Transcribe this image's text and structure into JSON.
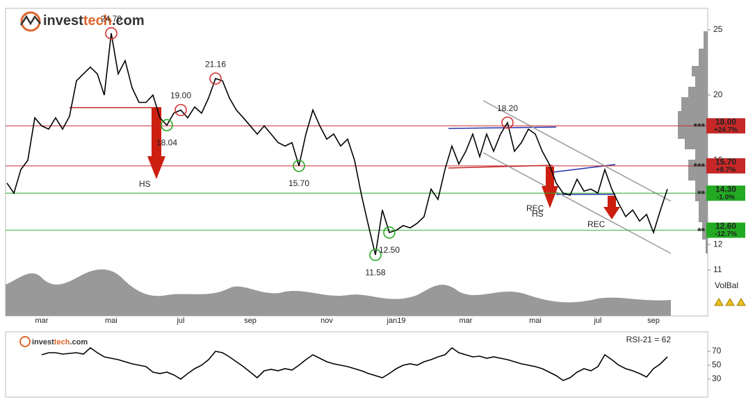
{
  "logo": [
    "invest",
    "tech",
    ".com"
  ],
  "chart_data": [
    {
      "type": "line",
      "log_scale": true,
      "color": "#000000",
      "categories": [
        null,
        null,
        null,
        null,
        null,
        "mar",
        null,
        null,
        null,
        null,
        null,
        null,
        null,
        null,
        null,
        "mai",
        null,
        null,
        null,
        null,
        null,
        null,
        null,
        null,
        null,
        "jul",
        null,
        null,
        null,
        null,
        null,
        null,
        null,
        null,
        null,
        "sep",
        null,
        null,
        null,
        null,
        null,
        null,
        null,
        null,
        null,
        null,
        "nov",
        null,
        null,
        null,
        null,
        null,
        null,
        null,
        null,
        null,
        "jan19",
        null,
        null,
        null,
        null,
        null,
        null,
        null,
        null,
        null,
        "mar",
        null,
        null,
        null,
        null,
        null,
        null,
        null,
        null,
        null,
        "mai",
        null,
        null,
        null,
        null,
        null,
        null,
        null,
        null,
        "jul",
        null,
        null,
        null,
        null,
        null,
        null,
        null,
        "sep",
        null,
        null
      ],
      "values": [
        14.8,
        14.3,
        15.5,
        16,
        18.5,
        18,
        17.8,
        18.5,
        17.8,
        18.6,
        21,
        21.5,
        22,
        21.5,
        20,
        24.7,
        21.5,
        22.5,
        20.5,
        19.5,
        19.5,
        20,
        18.5,
        18.04,
        18.8,
        19,
        18.5,
        19.2,
        18.8,
        19.8,
        21.16,
        21,
        19.8,
        19,
        18.5,
        18,
        17.5,
        18,
        17.5,
        17,
        16.8,
        17,
        15.7,
        17.5,
        19.0,
        18,
        17.2,
        17.5,
        16.8,
        17.2,
        16,
        14.2,
        12.8,
        11.58,
        13.5,
        12.5,
        12.6,
        12.8,
        12.7,
        12.9,
        13.2,
        14.5,
        14,
        15.5,
        16.8,
        15.8,
        16.5,
        17.5,
        16.2,
        17.5,
        16.5,
        17.5,
        18.2,
        16.5,
        17,
        17.8,
        17.5,
        16.5,
        15.8,
        14.8,
        14.3,
        14.2,
        15,
        14.4,
        14.5,
        14.3,
        15.5,
        14.5,
        13.8,
        13.2,
        13.5,
        13,
        13.3,
        12.5,
        13.5,
        14.5
      ],
      "ylim": [
        9.4,
        26.9
      ],
      "yticks": [
        11,
        12,
        16,
        20,
        25
      ],
      "levels": [
        {
          "value": 18.0,
          "label": "18.00",
          "change": "+24.7%",
          "stars": "***",
          "color": "#c62828"
        },
        {
          "value": 15.7,
          "label": "15.70",
          "change": "+8.7%",
          "stars": "***",
          "color": "#c62828"
        },
        {
          "value": 14.3,
          "label": "14.30",
          "change": "-1.0%",
          "stars": "**",
          "color": "#22aa22"
        },
        {
          "value": 12.6,
          "label": "12.60",
          "change": "-12.7%",
          "stars": "**",
          "color": "#22aa22"
        }
      ],
      "annotations": [
        {
          "text": "24.70",
          "value": 24.7,
          "color": "#d32f2f"
        },
        {
          "text": "21.16",
          "value": 21.16,
          "color": "#d32f2f"
        },
        {
          "text": "19.00",
          "value": 19.0,
          "color": "#d32f2f"
        },
        {
          "text": "18.20",
          "value": 18.2,
          "color": "#d32f2f"
        },
        {
          "text": "18.04",
          "value": 18.04,
          "color": "#22aa22"
        },
        {
          "text": "15.70",
          "value": 15.7,
          "color": "#22aa22"
        },
        {
          "text": "11.58",
          "value": 11.58,
          "color": "#22aa22"
        },
        {
          "text": "12.50",
          "value": 12.5,
          "color": "#22aa22"
        }
      ],
      "patterns": [
        "HS",
        "REC",
        "HS",
        "REC"
      ],
      "volume_label": "VolBal"
    },
    {
      "type": "line",
      "title": "RSI-21 = 62",
      "color": "#000000",
      "values": [
        null,
        null,
        null,
        null,
        null,
        65,
        68,
        68,
        66,
        67,
        68,
        66,
        75,
        68,
        62,
        60,
        58,
        55,
        52,
        50,
        48,
        40,
        38,
        40,
        36,
        30,
        38,
        45,
        50,
        58,
        70,
        68,
        62,
        55,
        48,
        40,
        32,
        42,
        44,
        42,
        45,
        43,
        50,
        58,
        65,
        60,
        55,
        52,
        50,
        48,
        45,
        42,
        38,
        35,
        32,
        38,
        45,
        50,
        52,
        50,
        55,
        58,
        62,
        65,
        75,
        68,
        65,
        62,
        63,
        60,
        62,
        60,
        58,
        55,
        52,
        50,
        48,
        45,
        40,
        35,
        28,
        32,
        40,
        45,
        42,
        48,
        65,
        58,
        50,
        45,
        42,
        38,
        33,
        45,
        52,
        62
      ],
      "ylim": [
        4,
        98
      ],
      "yticks": [
        30,
        50,
        70
      ]
    }
  ]
}
